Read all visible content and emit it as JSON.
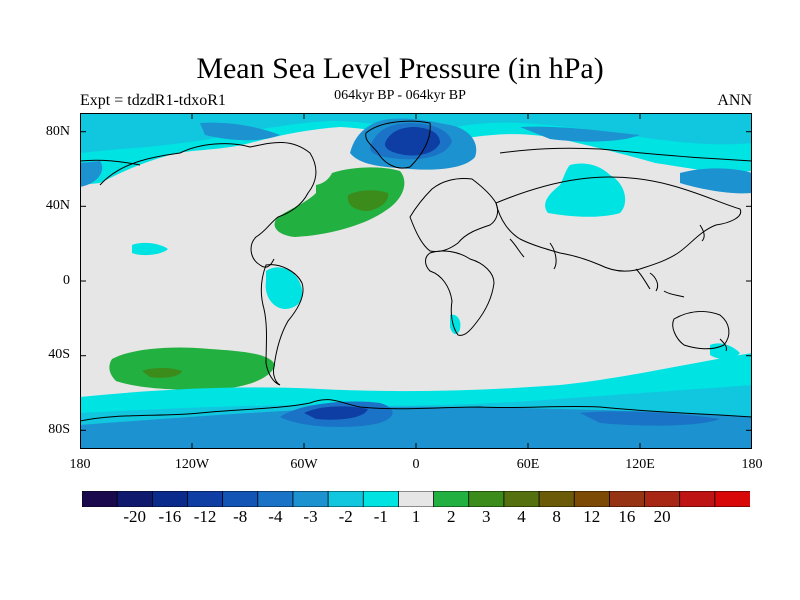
{
  "title": "Mean Sea Level Pressure (in hPa)",
  "subtitle": "064kyr BP - 064kyr BP",
  "left_label": "Expt = tdzdR1-tdxoR1",
  "right_label": "ANN",
  "lat_labels": [
    "80N",
    "40N",
    "0",
    "40S",
    "80S"
  ],
  "lon_labels": [
    "180",
    "120W",
    "60W",
    "0",
    "60E",
    "120E",
    "180"
  ],
  "colorbar": {
    "colors": [
      "#1a0a4d",
      "#0f1a6e",
      "#0a2a8c",
      "#0e3da3",
      "#1255b5",
      "#1a73c6",
      "#1c93d0",
      "#10c7df",
      "#00e3e3",
      "#e6e6e6",
      "#22b040",
      "#3c8c1c",
      "#54700f",
      "#6b5a08",
      "#7d4a05",
      "#953312",
      "#a82614",
      "#bf1414",
      "#d80808"
    ],
    "labels": [
      "-20",
      "-16",
      "-12",
      "-8",
      "-4",
      "-3",
      "-2",
      "-1",
      "1",
      "2",
      "3",
      "4",
      "8",
      "12",
      "16",
      "20"
    ]
  },
  "chart_data": {
    "type": "heatmap",
    "title": "Mean Sea Level Pressure (in hPa)",
    "subtitle": "064kyr BP - 064kyr BP",
    "xlim": [
      -180,
      180
    ],
    "ylim": [
      -90,
      90
    ],
    "contour_levels": [
      -20,
      -16,
      -12,
      -8,
      -4,
      -3,
      -2,
      -1,
      1,
      2,
      3,
      4,
      8,
      12,
      16,
      20
    ],
    "fields": [
      {
        "region": "Greenland",
        "approx_value": -8
      },
      {
        "region": "North Atlantic",
        "approx_value": 3
      },
      {
        "region": "South Pacific (~45S, 130W)",
        "approx_value": 3
      },
      {
        "region": "Antarctica",
        "approx_value": -4
      },
      {
        "region": "Southern Ocean",
        "approx_value": -2
      }
    ]
  },
  "palette": {
    "neutral": "#e6e6e6",
    "cyan": "#00e3e3",
    "light_blue": "#10c7df",
    "mid_blue": "#1c93d0",
    "blue": "#1a73c6",
    "dark_blue": "#0e3da3",
    "green": "#22b040",
    "dark_green": "#3c8c1c",
    "olive": "#54700f"
  }
}
